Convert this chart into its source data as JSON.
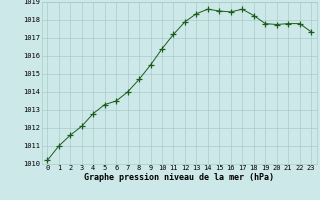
{
  "x": [
    0,
    1,
    2,
    3,
    4,
    5,
    6,
    7,
    8,
    9,
    10,
    11,
    12,
    13,
    14,
    15,
    16,
    17,
    18,
    19,
    20,
    21,
    22,
    23
  ],
  "y": [
    1010.2,
    1011.0,
    1011.6,
    1012.1,
    1012.8,
    1013.3,
    1013.5,
    1014.0,
    1014.7,
    1015.5,
    1016.4,
    1017.2,
    1017.9,
    1018.35,
    1018.6,
    1018.5,
    1018.45,
    1018.6,
    1018.25,
    1017.8,
    1017.75,
    1017.8,
    1017.8,
    1017.35
  ],
  "ylim": [
    1010,
    1019
  ],
  "yticks": [
    1010,
    1011,
    1012,
    1013,
    1014,
    1015,
    1016,
    1017,
    1018,
    1019
  ],
  "xticks": [
    0,
    1,
    2,
    3,
    4,
    5,
    6,
    7,
    8,
    9,
    10,
    11,
    12,
    13,
    14,
    15,
    16,
    17,
    18,
    19,
    20,
    21,
    22,
    23
  ],
  "xlabel": "Graphe pression niveau de la mer (hPa)",
  "line_color": "#1a5c1a",
  "marker": "+",
  "marker_color": "#1a5c1a",
  "bg_color": "#cde8e8",
  "grid_color": "#aacaca",
  "tick_fontsize": 5.0,
  "label_fontsize": 6.0
}
